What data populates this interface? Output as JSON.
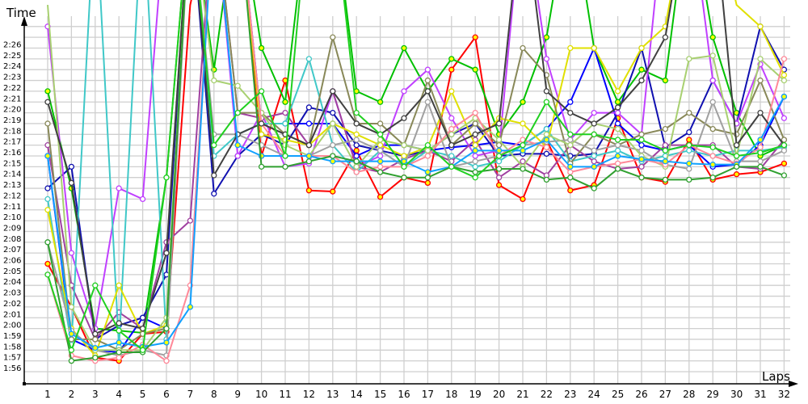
{
  "chart_data": {
    "type": "line",
    "xlabel": "Laps",
    "ylabel": "Time",
    "x": [
      1,
      2,
      3,
      4,
      5,
      6,
      7,
      8,
      9,
      10,
      11,
      12,
      13,
      14,
      15,
      16,
      17,
      18,
      19,
      20,
      21,
      22,
      23,
      24,
      25,
      26,
      27,
      28,
      29,
      30,
      31,
      32
    ],
    "yticks": [
      "1:56",
      "1:57",
      "1:58",
      "1:59",
      "2:00",
      "2:01",
      "2:02",
      "2:03",
      "2:04",
      "2:05",
      "2:06",
      "2:07",
      "2:08",
      "2:09",
      "2:10",
      "2:11",
      "2:12",
      "2:13",
      "2:14",
      "2:15",
      "2:16",
      "2:17",
      "2:18",
      "2:19",
      "2:20",
      "2:21",
      "2:22",
      "2:23",
      "2:24",
      "2:25",
      "2:26"
    ],
    "ylim": [
      "1:55.6",
      "2:28.5"
    ],
    "grid": true,
    "series": [
      {
        "color": "#ff0000",
        "marker": "#ffff00",
        "values": [
          "2:06",
          "2:02",
          "1:57.3",
          "1:57",
          "1:59.5",
          "1:59.7",
          "2:30",
          "2:40",
          "2:40",
          "2:16",
          "2:23",
          "2:12.8",
          "2:12.7",
          "2:16.5",
          "2:12.2",
          "2:14",
          "2:13.5",
          "2:24",
          "2:27",
          "2:13.3",
          "2:12",
          "2:17.5",
          "2:12.8",
          "2:13.3",
          "2:19.5",
          "2:14",
          "2:13.6",
          "2:17.5",
          "2:13.8",
          "2:14.3",
          "2:14.5",
          "2:15.3"
        ]
      },
      {
        "color": "#00c000",
        "marker": "#ffff00",
        "values": [
          "2:22",
          "2:13",
          "2:00",
          "1:59.8",
          "1:59.6",
          "2:14",
          "2:40",
          "2:24",
          "2:40",
          "2:26",
          "2:21",
          "2:40",
          "2:40",
          "2:22",
          "2:21",
          "2:26",
          "2:22",
          "2:25",
          "2:24",
          "2:18",
          "2:21",
          "2:27",
          "2:40",
          "2:26",
          "2:21",
          "2:24",
          "2:23",
          "2:40",
          "2:27",
          "2:20",
          "2:16",
          "2:17"
        ]
      },
      {
        "color": "#0000ff",
        "marker": "#ffffff",
        "values": [
          "2:16",
          "1:59",
          "1:58",
          "1:57.8",
          "2:01",
          "2:00",
          "2:40",
          "2:40",
          "2:40",
          "2:19",
          "2:19",
          "2:19",
          "2:19",
          "2:16",
          "2:17",
          "2:17",
          "2:16.5",
          "2:16.8",
          "2:17",
          "2:17.3",
          "2:17",
          "2:18.5",
          "2:21",
          "2:26",
          "2:19",
          "2:17",
          "2:16.5",
          "2:17",
          "2:15",
          "2:15.2",
          "2:17",
          "2:21.5"
        ]
      },
      {
        "color": "#1010b0",
        "marker": "#ffffff",
        "values": [
          "2:13",
          "2:15",
          "1:59",
          "2:00.3",
          "2:01",
          "2:05",
          "2:40",
          "2:12.5",
          "2:16",
          "2:18",
          "2:17",
          "2:20.5",
          "2:20",
          "2:17",
          "2:16.5",
          "2:16",
          "2:16.5",
          "2:18",
          "2:19",
          "2:16",
          "2:16.2",
          "2:16.2",
          "2:16",
          "2:16.2",
          "2:20",
          "2:26",
          "2:16.8",
          "2:18.2",
          "2:23",
          "2:19",
          "2:28",
          "2:24"
        ]
      },
      {
        "color": "#c040ff",
        "marker": "#ffffff",
        "values": [
          "2:28",
          "2:07",
          "2:00",
          "2:13",
          "2:12",
          "2:40",
          "2:40",
          "2:40",
          "2:16",
          "2:20",
          "2:15",
          "2:15.3",
          "2:22",
          "2:15",
          "2:16",
          "2:22",
          "2:24",
          "2:19.5",
          "2:16",
          "2:16.5",
          "2:40",
          "2:25",
          "2:17.5",
          "2:20",
          "2:20",
          "2:18",
          "2:40",
          "2:40",
          "2:23",
          "2:19",
          "2:24.5",
          "2:19.5"
        ]
      },
      {
        "color": "#a040a0",
        "marker": "#ffffff",
        "values": [
          "2:17",
          "2:04",
          "1:59",
          "2:01.5",
          "2:00",
          "2:08",
          "2:10",
          "2:40",
          "2:20",
          "2:19.5",
          "2:20",
          "2:17",
          "2:22",
          "2:15",
          "2:14.5",
          "2:15.7",
          "2:16.5",
          "2:15.5",
          "2:17.5",
          "2:14",
          "2:15.5",
          "2:14.2",
          "2:17",
          "2:15.5",
          "2:14.8",
          "2:15",
          "2:17",
          "2:17",
          "2:17",
          "2:15",
          "2:14.8",
          "2:17.5"
        ]
      },
      {
        "color": "#40c8c8",
        "marker": "#ffffff",
        "values": [
          "2:12",
          "1:58.5",
          "2:40",
          "1:58.3",
          "2:40",
          "1:59",
          "2:40",
          "2:16",
          "2:18",
          "2:19",
          "2:19",
          "2:25",
          "2:17",
          "2:14.5",
          "2:16.5",
          "2:15",
          "2:16.5",
          "2:16",
          "2:15",
          "2:15.5",
          "2:17",
          "2:18.5",
          "2:15.5",
          "2:16",
          "2:16.5",
          "2:15.5",
          "2:16",
          "2:16.5",
          "2:16",
          "2:16.5",
          "2:16.5",
          "2:16.8"
        ]
      },
      {
        "color": "#e0e000",
        "marker": "#ffffff",
        "values": [
          "2:11",
          "2:00",
          "1:57.5",
          "2:04",
          "1:59.5",
          "2:00.3",
          "2:40",
          "2:40",
          "2:40",
          "2:18",
          "2:17.5",
          "2:17",
          "2:19",
          "2:18",
          "2:17",
          "2:16",
          "2:16.8",
          "2:22",
          "2:17",
          "2:19.5",
          "2:19",
          "2:16.8",
          "2:26",
          "2:26",
          "2:22",
          "2:26",
          "2:28",
          "2:40",
          "2:40",
          "2:30",
          "2:28",
          "2:23.5"
        ]
      },
      {
        "color": "#888858",
        "marker": "#ffffff",
        "values": [
          "2:19",
          "1:59",
          "1:59",
          "1:58",
          "1:59.5",
          "2:00",
          "2:40",
          "2:40",
          "2:20",
          "2:20",
          "2:18",
          "2:17",
          "2:27",
          "2:19",
          "2:19",
          "2:17",
          "2:23",
          "2:17",
          "2:19",
          "2:17",
          "2:26",
          "2:23.5",
          "2:15.3",
          "2:18",
          "2:17",
          "2:18",
          "2:18.5",
          "2:20",
          "2:18.5",
          "2:18",
          "2:23",
          "2:17.5"
        ]
      },
      {
        "color": "#a0a0a0",
        "marker": "#ffffff",
        "values": [
          "2:08",
          "1:59.8",
          "1:58",
          "1:57.5",
          "1:58",
          "1:57.5",
          "2:40",
          "2:18",
          "2:18",
          "2:17",
          "2:16",
          "2:16",
          "2:17",
          "2:17.5",
          "2:16.5",
          "2:15",
          "2:21",
          "2:15",
          "2:15.5",
          "2:16",
          "2:17",
          "2:17.3",
          "2:17.5",
          "2:16.5",
          "2:17",
          "2:16.5",
          "2:15.2",
          "2:14.8",
          "2:21",
          "2:15.5",
          "2:15.5",
          "2:16.5"
        ]
      },
      {
        "color": "#a8d070",
        "marker": "#ffffff",
        "values": [
          "2:30",
          "2:02",
          "1:58",
          "1:58",
          "1:58",
          "2:01",
          "2:40",
          "2:23",
          "2:22.5",
          "2:20",
          "2:17",
          "2:16",
          "2:19",
          "2:15",
          "2:17.5",
          "2:17",
          "2:16.5",
          "2:18",
          "2:19.5",
          "2:17.5",
          "2:15",
          "2:18",
          "2:17",
          "2:19",
          "2:18.5",
          "2:16",
          "2:15",
          "2:25",
          "2:25.3",
          "2:16",
          "2:25",
          "2:23"
        ]
      },
      {
        "color": "#ff8898",
        "marker": "#ffffff",
        "values": [
          "2:05",
          "1:57.5",
          "1:57",
          "1:57.3",
          "1:58.5",
          "1:57",
          "2:04",
          "2:40",
          "2:40",
          "2:19",
          "2:16",
          "2:16",
          "2:16",
          "2:14.5",
          "2:15",
          "2:15",
          "2:16",
          "2:18.5",
          "2:20",
          "2:16",
          "2:17.5",
          "2:16.8",
          "2:14.5",
          "2:15",
          "2:15.3",
          "2:15.7",
          "2:15.2",
          "2:17",
          "2:16",
          "2:15.3",
          "2:16.8",
          "2:25"
        ]
      },
      {
        "color": "#404040",
        "marker": "#ffffff",
        "values": [
          "2:21",
          "2:13.5",
          "1:59.5",
          "2:00.5",
          "2:00",
          "2:07",
          "2:40",
          "2:14.2",
          "2:18",
          "2:19",
          "2:18",
          "2:17",
          "2:22",
          "2:19",
          "2:18",
          "2:19.5",
          "2:22",
          "2:17",
          "2:18",
          "2:19",
          "2:40",
          "2:22",
          "2:20",
          "2:19",
          "2:20.5",
          "2:23",
          "2:27",
          "2:40",
          "2:40",
          "2:17",
          "2:20",
          "2:17"
        ]
      },
      {
        "color": "#10a0ff",
        "marker": "#ffff00",
        "values": [
          "2:16",
          "1:59.5",
          "1:58.2",
          "1:58.7",
          "1:58.3",
          "1:58.7",
          "2:02",
          "2:40",
          "2:17",
          "2:16",
          "2:16",
          "2:16",
          "2:15.5",
          "2:15.5",
          "2:15.5",
          "2:15.5",
          "2:14.5",
          "2:15",
          "2:16.5",
          "2:16.5",
          "2:16.5",
          "2:17.5",
          "2:15",
          "2:15",
          "2:16",
          "2:15.7",
          "2:15.5",
          "2:15.3",
          "2:15.2",
          "2:15.2",
          "2:17.5",
          "2:21.5"
        ]
      },
      {
        "color": "#30a030",
        "marker": "#ffffff",
        "values": [
          "2:08",
          "1:57",
          "1:57.3",
          "1:57.8",
          "1:57.8",
          "2:00",
          "2:40",
          "2:40",
          "2:40",
          "2:15",
          "2:15",
          "2:15.5",
          "2:16",
          "2:15.5",
          "2:14.5",
          "2:14",
          "2:14",
          "2:15",
          "2:14.5",
          "2:14.8",
          "2:14.8",
          "2:13.8",
          "2:14",
          "2:13",
          "2:14.8",
          "2:14",
          "2:13.8",
          "2:13.8",
          "2:14",
          "2:15",
          "2:15",
          "2:14.2"
        ]
      },
      {
        "color": "#20d020",
        "marker": "#ffffff",
        "values": [
          "2:05",
          "1:58",
          "2:04",
          "1:59.8",
          "1:58",
          "2:14",
          "2:40",
          "2:17",
          "2:20",
          "2:22",
          "2:16",
          "2:40",
          "2:40",
          "2:20",
          "2:18",
          "2:15",
          "2:17",
          "2:15",
          "2:14",
          "2:16",
          "2:17",
          "2:21",
          "2:18",
          "2:18",
          "2:17.5",
          "2:17.5",
          "2:16.5",
          "2:17",
          "2:16.8",
          "2:16",
          "2:16.3",
          "2:17"
        ]
      }
    ]
  }
}
